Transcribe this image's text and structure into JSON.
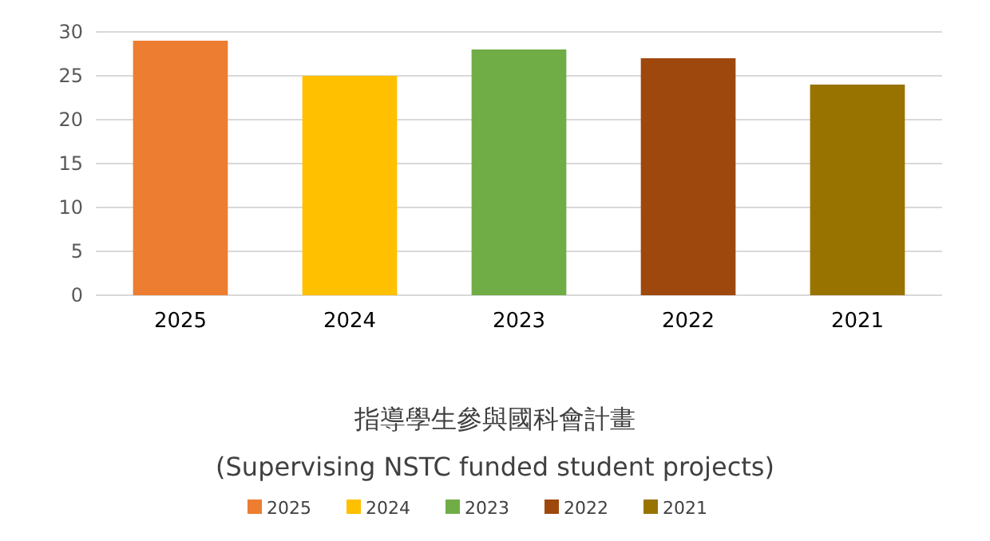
{
  "chart_data": {
    "type": "bar",
    "title": "指導學生參與國科會計畫",
    "subtitle": "(Supervising NSTC funded student projects)",
    "categories": [
      null
    ],
    "series": [
      {
        "name": "2025",
        "color": "#ed7d31",
        "values": [
          29
        ]
      },
      {
        "name": "2024",
        "color": "#ffc000",
        "values": [
          25
        ]
      },
      {
        "name": "2023",
        "color": "#70ad47",
        "values": [
          28
        ]
      },
      {
        "name": "2022",
        "color": "#9e480e",
        "values": [
          27
        ]
      },
      {
        "name": "2021",
        "color": "#997300",
        "values": [
          24
        ]
      }
    ],
    "ylim": [
      0,
      30
    ],
    "yticks": [
      0,
      5,
      10,
      15,
      20,
      25,
      30
    ],
    "grid": "y",
    "legend": "bottom"
  }
}
